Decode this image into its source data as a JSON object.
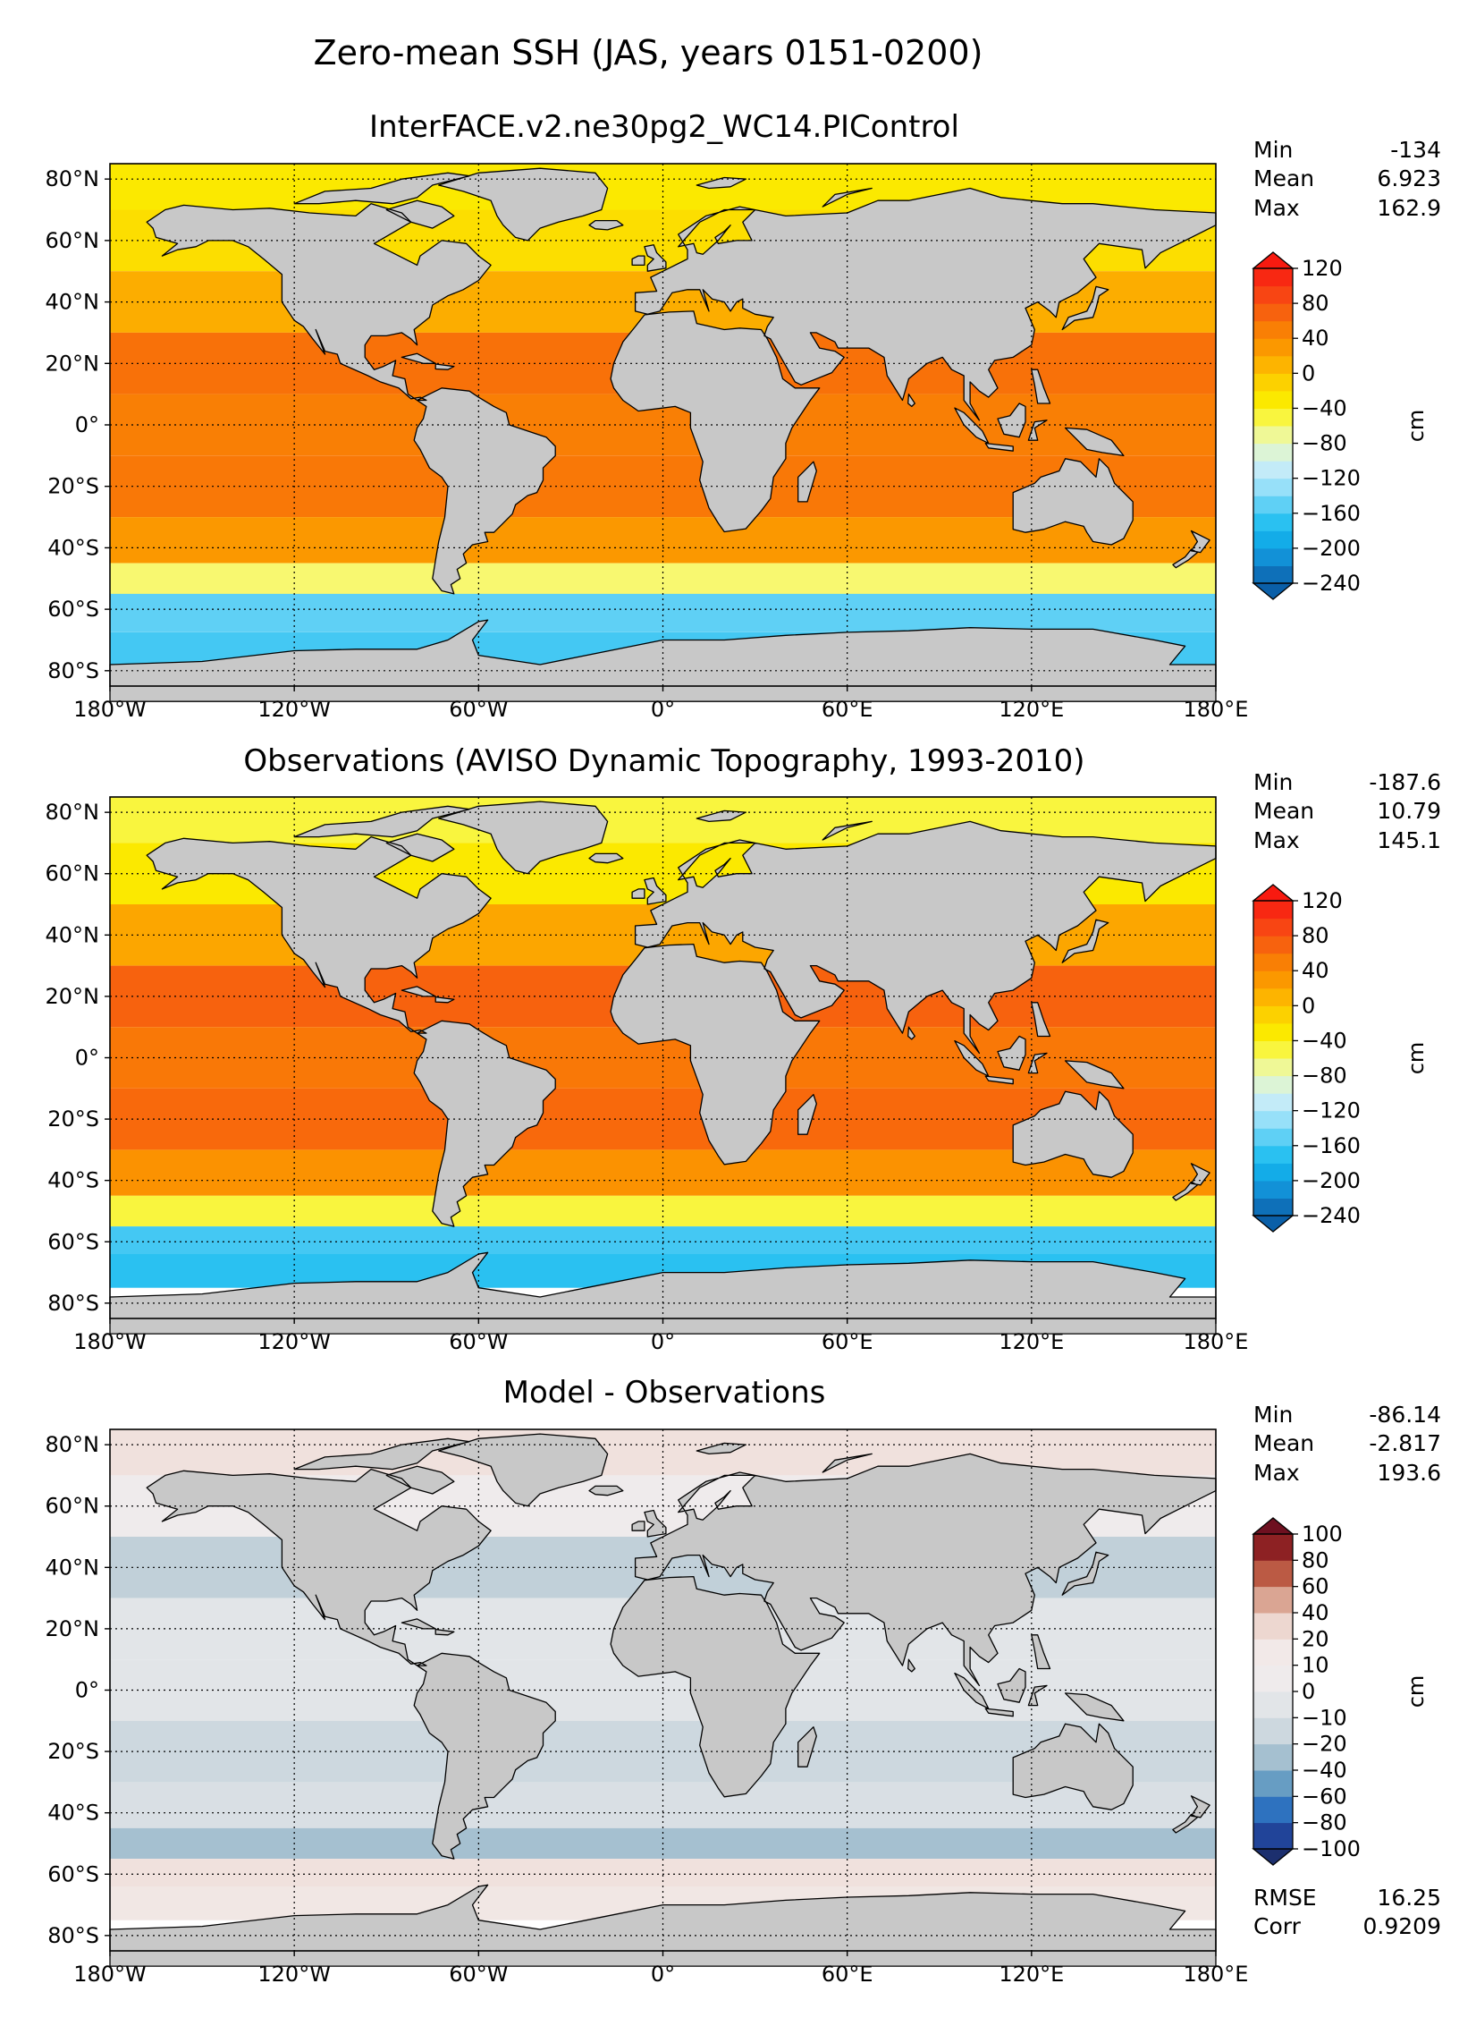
{
  "figure": {
    "suptitle": "Zero-mean SSH (JAS, years 0151-0200)",
    "stats_labels": {
      "min": "Min",
      "mean": "Mean",
      "max": "Max",
      "rmse": "RMSE",
      "corr": "Corr"
    }
  },
  "colors": {
    "land": "#c8c8c8",
    "nodata": "#ffffff",
    "ssh_scale": [
      "#0a5fa8",
      "#1386cf",
      "#0fa6e6",
      "#23bff0",
      "#5fd0f5",
      "#9ee2fa",
      "#cdeef7",
      "#e3f7c6",
      "#f8f870",
      "#fbf200",
      "#fcd800",
      "#fdb800",
      "#fb9800",
      "#f97c06",
      "#f75a10",
      "#f83a14",
      "#f81a10"
    ],
    "diff_scale": [
      "#1c2f6e",
      "#2350b0",
      "#2f74c0",
      "#5b95c1",
      "#8cb3c8",
      "#b9cbd6",
      "#dfe3e7",
      "#f2eded",
      "#f1e5e2",
      "#e7c6bb",
      "#d69a86",
      "#bd5c46",
      "#9e2a25",
      "#6e1020"
    ]
  },
  "chart_data": [
    {
      "type": "heatmap",
      "panel": "model",
      "title": "InterFACE.v2.ne30pg2_WC14.PIControl",
      "stats": {
        "min": "-134",
        "mean": "6.923",
        "max": "162.9"
      },
      "x_ticks": [
        "180°W",
        "120°W",
        "60°W",
        "0°",
        "60°E",
        "120°E",
        "180°E"
      ],
      "y_ticks": [
        "80°N",
        "60°N",
        "40°N",
        "20°N",
        "0°",
        "20°S",
        "40°S",
        "60°S",
        "80°S"
      ],
      "xlim": [
        -180,
        180
      ],
      "ylim": [
        -85,
        85
      ],
      "colorbar": {
        "label": "cm",
        "ticks": [
          "120",
          "80",
          "40",
          "0",
          "−40",
          "−80",
          "−120",
          "−160",
          "−200",
          "−240"
        ],
        "levels": [
          -240,
          -220,
          -200,
          -180,
          -160,
          -140,
          -120,
          -100,
          -80,
          -60,
          -40,
          -20,
          0,
          20,
          40,
          60,
          80,
          100,
          120
        ]
      },
      "field_summary": [
        {
          "lat": 80,
          "mean_cm": -30
        },
        {
          "lat": 60,
          "mean_cm": -20
        },
        {
          "lat": 40,
          "mean_cm": 15
        },
        {
          "lat": 20,
          "mean_cm": 60
        },
        {
          "lat": 0,
          "mean_cm": 50
        },
        {
          "lat": -20,
          "mean_cm": 55
        },
        {
          "lat": -40,
          "mean_cm": 30
        },
        {
          "lat": -50,
          "mean_cm": -60
        },
        {
          "lat": -60,
          "mean_cm": -150
        },
        {
          "lat": -75,
          "mean_cm": -160
        }
      ]
    },
    {
      "type": "heatmap",
      "panel": "obs",
      "title": "Observations (AVISO Dynamic Topography, 1993-2010)",
      "stats": {
        "min": "-187.6",
        "mean": "10.79",
        "max": "145.1"
      },
      "x_ticks": [
        "180°W",
        "120°W",
        "60°W",
        "0°",
        "60°E",
        "120°E",
        "180°E"
      ],
      "y_ticks": [
        "80°N",
        "60°N",
        "40°N",
        "20°N",
        "0°",
        "20°S",
        "40°S",
        "60°S",
        "80°S"
      ],
      "xlim": [
        -180,
        180
      ],
      "ylim": [
        -85,
        85
      ],
      "colorbar": {
        "label": "cm",
        "ticks": [
          "120",
          "80",
          "40",
          "0",
          "−40",
          "−80",
          "−120",
          "−160",
          "−200",
          "−240"
        ],
        "levels": [
          -240,
          -220,
          -200,
          -180,
          -160,
          -140,
          -120,
          -100,
          -80,
          -60,
          -40,
          -20,
          0,
          20,
          40,
          60,
          80,
          100,
          120
        ]
      },
      "field_summary": [
        {
          "lat": 80,
          "mean_cm": -50
        },
        {
          "lat": 60,
          "mean_cm": -30
        },
        {
          "lat": 40,
          "mean_cm": 20
        },
        {
          "lat": 20,
          "mean_cm": 70
        },
        {
          "lat": 0,
          "mean_cm": 55
        },
        {
          "lat": -20,
          "mean_cm": 65
        },
        {
          "lat": -40,
          "mean_cm": 35
        },
        {
          "lat": -50,
          "mean_cm": -50
        },
        {
          "lat": -60,
          "mean_cm": -160
        },
        {
          "lat": -68,
          "mean_cm": -170
        }
      ]
    },
    {
      "type": "heatmap",
      "panel": "diff",
      "title": "Model - Observations",
      "stats": {
        "min": "-86.14",
        "mean": "-2.817",
        "max": "193.6"
      },
      "metrics": {
        "rmse": "16.25",
        "corr": "0.9209"
      },
      "x_ticks": [
        "180°W",
        "120°W",
        "60°W",
        "0°",
        "60°E",
        "120°E",
        "180°E"
      ],
      "y_ticks": [
        "80°N",
        "60°N",
        "40°N",
        "20°N",
        "0°",
        "20°S",
        "40°S",
        "60°S",
        "80°S"
      ],
      "xlim": [
        -180,
        180
      ],
      "ylim": [
        -85,
        85
      ],
      "colorbar": {
        "label": "cm",
        "ticks": [
          "100",
          "80",
          "60",
          "40",
          "20",
          "10",
          "0",
          "−10",
          "−20",
          "−40",
          "−60",
          "−80",
          "−100"
        ],
        "levels": [
          -100,
          -80,
          -60,
          -40,
          -20,
          -10,
          0,
          10,
          20,
          40,
          60,
          80,
          100
        ]
      },
      "field_summary": [
        {
          "lat": 80,
          "mean_cm": 25
        },
        {
          "lat": 60,
          "mean_cm": 5
        },
        {
          "lat": 40,
          "mean_cm": -20
        },
        {
          "lat": 20,
          "mean_cm": -5
        },
        {
          "lat": 0,
          "mean_cm": -5
        },
        {
          "lat": -20,
          "mean_cm": -15
        },
        {
          "lat": -40,
          "mean_cm": -10
        },
        {
          "lat": -50,
          "mean_cm": -30
        },
        {
          "lat": -60,
          "mean_cm": 25
        },
        {
          "lat": -68,
          "mean_cm": 20
        }
      ]
    }
  ]
}
